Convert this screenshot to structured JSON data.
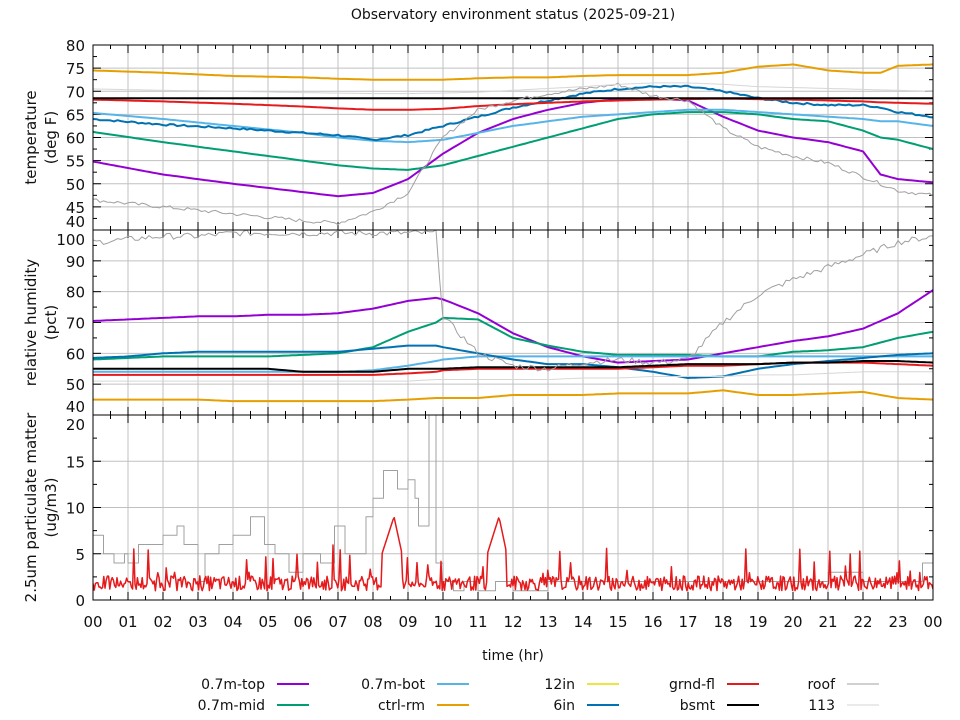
{
  "chart_data": [
    {
      "type": "line",
      "title": "Observatory environment status (2025-09-21)",
      "ylabel": [
        "temperature",
        "(deg F)"
      ],
      "xlabel": "time (hr)",
      "ylim": [
        40,
        80
      ],
      "yticks": [
        40,
        45,
        50,
        55,
        60,
        65,
        70,
        75,
        80
      ],
      "ytick_labels": [
        "40",
        "45",
        "50",
        "55",
        "60",
        "65",
        "70",
        "75",
        "80"
      ],
      "grid": true,
      "x": [
        0,
        2,
        4,
        6,
        7,
        8,
        9,
        10,
        11,
        12,
        13,
        14,
        15,
        16,
        17,
        18,
        19,
        20,
        21,
        22,
        22.5,
        23,
        24
      ],
      "series": [
        {
          "name": "0.7m-top",
          "color": "#9400d3",
          "values": [
            54.8,
            52,
            50,
            48.2,
            47.3,
            48,
            51,
            56.5,
            61,
            64,
            66,
            67.5,
            68.3,
            68.5,
            68,
            64.5,
            61.5,
            60,
            59,
            57,
            52,
            51,
            50.3
          ]
        },
        {
          "name": "0.7m-mid",
          "color": "#009e73",
          "values": [
            61.2,
            59,
            57,
            55,
            54,
            53.3,
            53,
            54,
            56,
            58,
            60,
            62,
            64,
            65,
            65.5,
            65.5,
            65,
            64,
            63.5,
            61.5,
            60,
            59.5,
            57.5
          ]
        },
        {
          "name": "0.7m-bot",
          "color": "#56b4e9",
          "values": [
            65.3,
            64,
            62.5,
            61,
            60,
            59.3,
            59,
            59.5,
            61,
            62.5,
            63.5,
            64.5,
            65,
            65.5,
            66,
            66,
            65.5,
            65,
            64.5,
            64,
            63.5,
            63.5,
            62.5
          ]
        },
        {
          "name": "ctrl-rm",
          "color": "#e69f00",
          "values": [
            74.5,
            74,
            73.3,
            73,
            72.7,
            72.5,
            72.5,
            72.5,
            72.8,
            73,
            73,
            73.3,
            73.5,
            73.5,
            73.5,
            74,
            75.3,
            75.8,
            74.5,
            74,
            74,
            75.5,
            75.8
          ]
        },
        {
          "name": "6in",
          "color": "#0072b2",
          "values": [
            64,
            62.8,
            62,
            61,
            60.5,
            59.5,
            60.5,
            62.5,
            64.5,
            66.5,
            68,
            69.5,
            70.5,
            71,
            71,
            70,
            68.5,
            67.5,
            67,
            67,
            66.5,
            65.5,
            64.5
          ]
        },
        {
          "name": "grnd-fl",
          "color": "#e41a1c",
          "values": [
            68.2,
            67.8,
            67.3,
            66.7,
            66.3,
            66,
            66,
            66.2,
            66.8,
            67.2,
            67.5,
            67.8,
            68,
            68.2,
            68.3,
            68.4,
            68.3,
            68.2,
            68,
            67.8,
            67.6,
            67.5,
            67.3
          ]
        },
        {
          "name": "bsmt",
          "color": "#000000",
          "values": [
            68.5,
            68.5,
            68.5,
            68.5,
            68.5,
            68.5,
            68.5,
            68.5,
            68.5,
            68.5,
            68.5,
            68.5,
            68.5,
            68.5,
            68.5,
            68.5,
            68.5,
            68.5,
            68.5,
            68.5,
            68.5,
            68.5,
            68.5
          ]
        },
        {
          "name": "roof",
          "color": "#a0a0a0",
          "values": [
            46.5,
            45,
            43.5,
            42,
            41.5,
            44,
            48,
            60,
            66,
            68,
            69.5,
            70.5,
            71.5,
            69,
            68,
            62,
            58,
            56,
            54.5,
            51.5,
            50,
            48.5,
            47.5
          ]
        },
        {
          "name": "113",
          "color": "#d6d6d6",
          "values": [
            70.5,
            70.2,
            70,
            69.7,
            69.6,
            69.5,
            69.5,
            69.6,
            69.8,
            70.2,
            70.6,
            71,
            71.5,
            71.8,
            71.8,
            71.5,
            71,
            70.8,
            70.6,
            70.4,
            70.3,
            70.2,
            70
          ]
        }
      ]
    },
    {
      "type": "line",
      "ylabel": [
        "relative humidity",
        "(pct)"
      ],
      "xlabel": "time (hr)",
      "ylim": [
        40,
        100
      ],
      "yticks": [
        40,
        50,
        60,
        70,
        80,
        90,
        100
      ],
      "ytick_labels": [
        "40",
        "50",
        "60",
        "70",
        "80",
        "90",
        "100"
      ],
      "grid": true,
      "x": [
        0,
        1,
        2,
        3,
        4,
        5,
        6,
        7,
        8,
        9,
        9.8,
        10,
        11,
        12,
        13,
        14,
        15,
        16,
        17,
        18,
        19,
        20,
        21,
        22,
        23,
        24
      ],
      "series": [
        {
          "name": "0.7m-top",
          "color": "#9400d3",
          "values": [
            70.5,
            71,
            71.5,
            72,
            72,
            72.5,
            72.5,
            73,
            74.5,
            77,
            78,
            77.5,
            73,
            66.5,
            62,
            59,
            57,
            57.5,
            58,
            60,
            62,
            64,
            65.5,
            68,
            73,
            80.5
          ]
        },
        {
          "name": "0.7m-mid",
          "color": "#009e73",
          "values": [
            58,
            58.5,
            59,
            59,
            59,
            59,
            59.5,
            60,
            62,
            67,
            70,
            71.5,
            71,
            65,
            62.5,
            60.5,
            59.5,
            59.5,
            59.5,
            59,
            59,
            60.5,
            61,
            62,
            65,
            67
          ]
        },
        {
          "name": "0.7m-bot",
          "color": "#56b4e9",
          "values": [
            54,
            54,
            54,
            54,
            54,
            54,
            54,
            54,
            54.5,
            56,
            57.5,
            58,
            59,
            59,
            59,
            59,
            59,
            59,
            59,
            59,
            59,
            59,
            59,
            59,
            59,
            59
          ]
        },
        {
          "name": "ctrl-rm",
          "color": "#e69f00",
          "values": [
            45,
            45,
            45,
            45,
            44.5,
            44.5,
            44.5,
            44.5,
            44.5,
            45,
            45.5,
            45.5,
            45.5,
            46.5,
            46.5,
            46.5,
            47,
            47,
            47,
            48,
            46.5,
            46.5,
            47,
            47.5,
            45.5,
            45
          ]
        },
        {
          "name": "6in",
          "color": "#0072b2",
          "values": [
            58.5,
            59,
            60,
            60.5,
            60.5,
            60.5,
            60.5,
            60.5,
            61.5,
            62.5,
            62.5,
            62,
            60,
            58,
            56.5,
            56.5,
            55.5,
            54,
            52,
            52.5,
            55,
            56.5,
            57.5,
            58.5,
            59.5,
            60
          ]
        },
        {
          "name": "grnd-fl",
          "color": "#e41a1c",
          "values": [
            53,
            53,
            53,
            53,
            53,
            53,
            53,
            53,
            53,
            53.5,
            54,
            54.5,
            55,
            55,
            55,
            55,
            55,
            55.5,
            56,
            56,
            56.5,
            57,
            57,
            57,
            56.5,
            56
          ]
        },
        {
          "name": "bsmt",
          "color": "#000000",
          "values": [
            55,
            55,
            55,
            55,
            55,
            55,
            54,
            54,
            54,
            55,
            55,
            55,
            55.5,
            55.5,
            55.5,
            55.5,
            55.5,
            56,
            56.5,
            56.5,
            56.5,
            57,
            57,
            57.5,
            57.5,
            57
          ]
        },
        {
          "name": "roof",
          "color": "#a0a0a0",
          "values": [
            96,
            97,
            98,
            98,
            99,
            99,
            99,
            99,
            99,
            99,
            99,
            72,
            60,
            56,
            55,
            57,
            58,
            57,
            58,
            70,
            79,
            84,
            88,
            92,
            96,
            98
          ]
        },
        {
          "name": "113",
          "color": "#d6d6d6",
          "values": [
            51,
            51,
            51,
            51,
            51,
            51,
            51,
            51,
            51,
            51,
            51.5,
            51.5,
            51.5,
            51.5,
            51.5,
            52,
            52,
            52.5,
            52.5,
            52.5,
            53,
            53,
            53.5,
            54,
            54,
            54
          ]
        }
      ]
    },
    {
      "type": "line",
      "ylabel": [
        "2.5um particulate matter",
        "(ug/m3)"
      ],
      "xlabel": "time (hr)",
      "xticks": [
        0,
        1,
        2,
        3,
        4,
        5,
        6,
        7,
        8,
        9,
        10,
        11,
        12,
        13,
        14,
        15,
        16,
        17,
        18,
        19,
        20,
        21,
        22,
        23,
        24
      ],
      "xtick_labels": [
        "00",
        "01",
        "02",
        "03",
        "04",
        "05",
        "06",
        "07",
        "08",
        "09",
        "10",
        "11",
        "12",
        "13",
        "14",
        "15",
        "16",
        "17",
        "18",
        "19",
        "20",
        "21",
        "22",
        "23",
        "00"
      ],
      "ylim": [
        0,
        20
      ],
      "yticks": [
        0,
        5,
        10,
        15,
        20
      ],
      "ytick_labels": [
        "0",
        "5",
        "10",
        "15",
        "20"
      ],
      "grid": true,
      "series": [
        {
          "name": "roof",
          "color": "#a0a0a0",
          "step": true,
          "x": [
            0,
            0.3,
            0.6,
            0.9,
            1.0,
            1.3,
            1.5,
            2.0,
            2.4,
            2.6,
            3.0,
            3.2,
            3.6,
            4.0,
            4.5,
            4.9,
            5.2,
            5.6,
            6.0,
            6.5,
            6.9,
            7.2,
            7.8,
            8.0,
            8.3,
            8.7,
            9.0,
            9.2,
            9.3,
            9.6,
            9.8,
            10.0,
            10.3,
            10.6,
            11.0,
            11.5,
            12.0,
            13.0,
            14.0,
            15.0,
            16.0,
            17.0,
            18.0,
            19.0,
            20.0,
            21.0,
            22.0,
            23.0,
            23.7,
            24.0
          ],
          "values": [
            7,
            5,
            4,
            5,
            4,
            6,
            6,
            7,
            8,
            6,
            2,
            5,
            6,
            7,
            9,
            6,
            5,
            3,
            5,
            4,
            8,
            5,
            9,
            11,
            14,
            12,
            13,
            11,
            8,
            20,
            4,
            2,
            1,
            2,
            1,
            2,
            1,
            2,
            2,
            2,
            2,
            2,
            2,
            2,
            2,
            3,
            2,
            2,
            4,
            6
          ]
        },
        {
          "name": "grnd-fl",
          "color": "#e41a1c",
          "noise": true,
          "x": [
            0,
            1,
            2,
            3,
            4,
            5,
            6,
            7,
            8,
            8.6,
            9,
            10,
            11,
            11.6,
            12,
            13,
            14,
            15,
            16,
            17,
            18,
            19,
            20,
            21,
            22,
            23,
            24
          ],
          "values": [
            1.5,
            2,
            1.8,
            2,
            1.8,
            2.2,
            1.7,
            1.8,
            2,
            9,
            2,
            1.8,
            1.8,
            9,
            1.8,
            1.7,
            1.7,
            1.8,
            1.7,
            1.6,
            1.7,
            1.7,
            1.8,
            1.7,
            1.8,
            1.8,
            2
          ],
          "peak_max": 9
        }
      ]
    }
  ],
  "legend": {
    "placement": "bottom",
    "entries": [
      {
        "label": "0.7m-top",
        "color": "#9400d3"
      },
      {
        "label": "0.7m-mid",
        "color": "#009e73"
      },
      {
        "label": "0.7m-bot",
        "color": "#56b4e9"
      },
      {
        "label": "ctrl-rm",
        "color": "#e69f00"
      },
      {
        "label": "12in",
        "color": "#f0e442"
      },
      {
        "label": "6in",
        "color": "#0072b2"
      },
      {
        "label": "grnd-fl",
        "color": "#e41a1c"
      },
      {
        "label": "bsmt",
        "color": "#000000"
      },
      {
        "label": "roof",
        "color": "#a0a0a0"
      },
      {
        "label": "113",
        "color": "#d6d6d6"
      }
    ]
  },
  "colors": {
    "grid": "#c0c0c0",
    "axis": "#000000"
  }
}
